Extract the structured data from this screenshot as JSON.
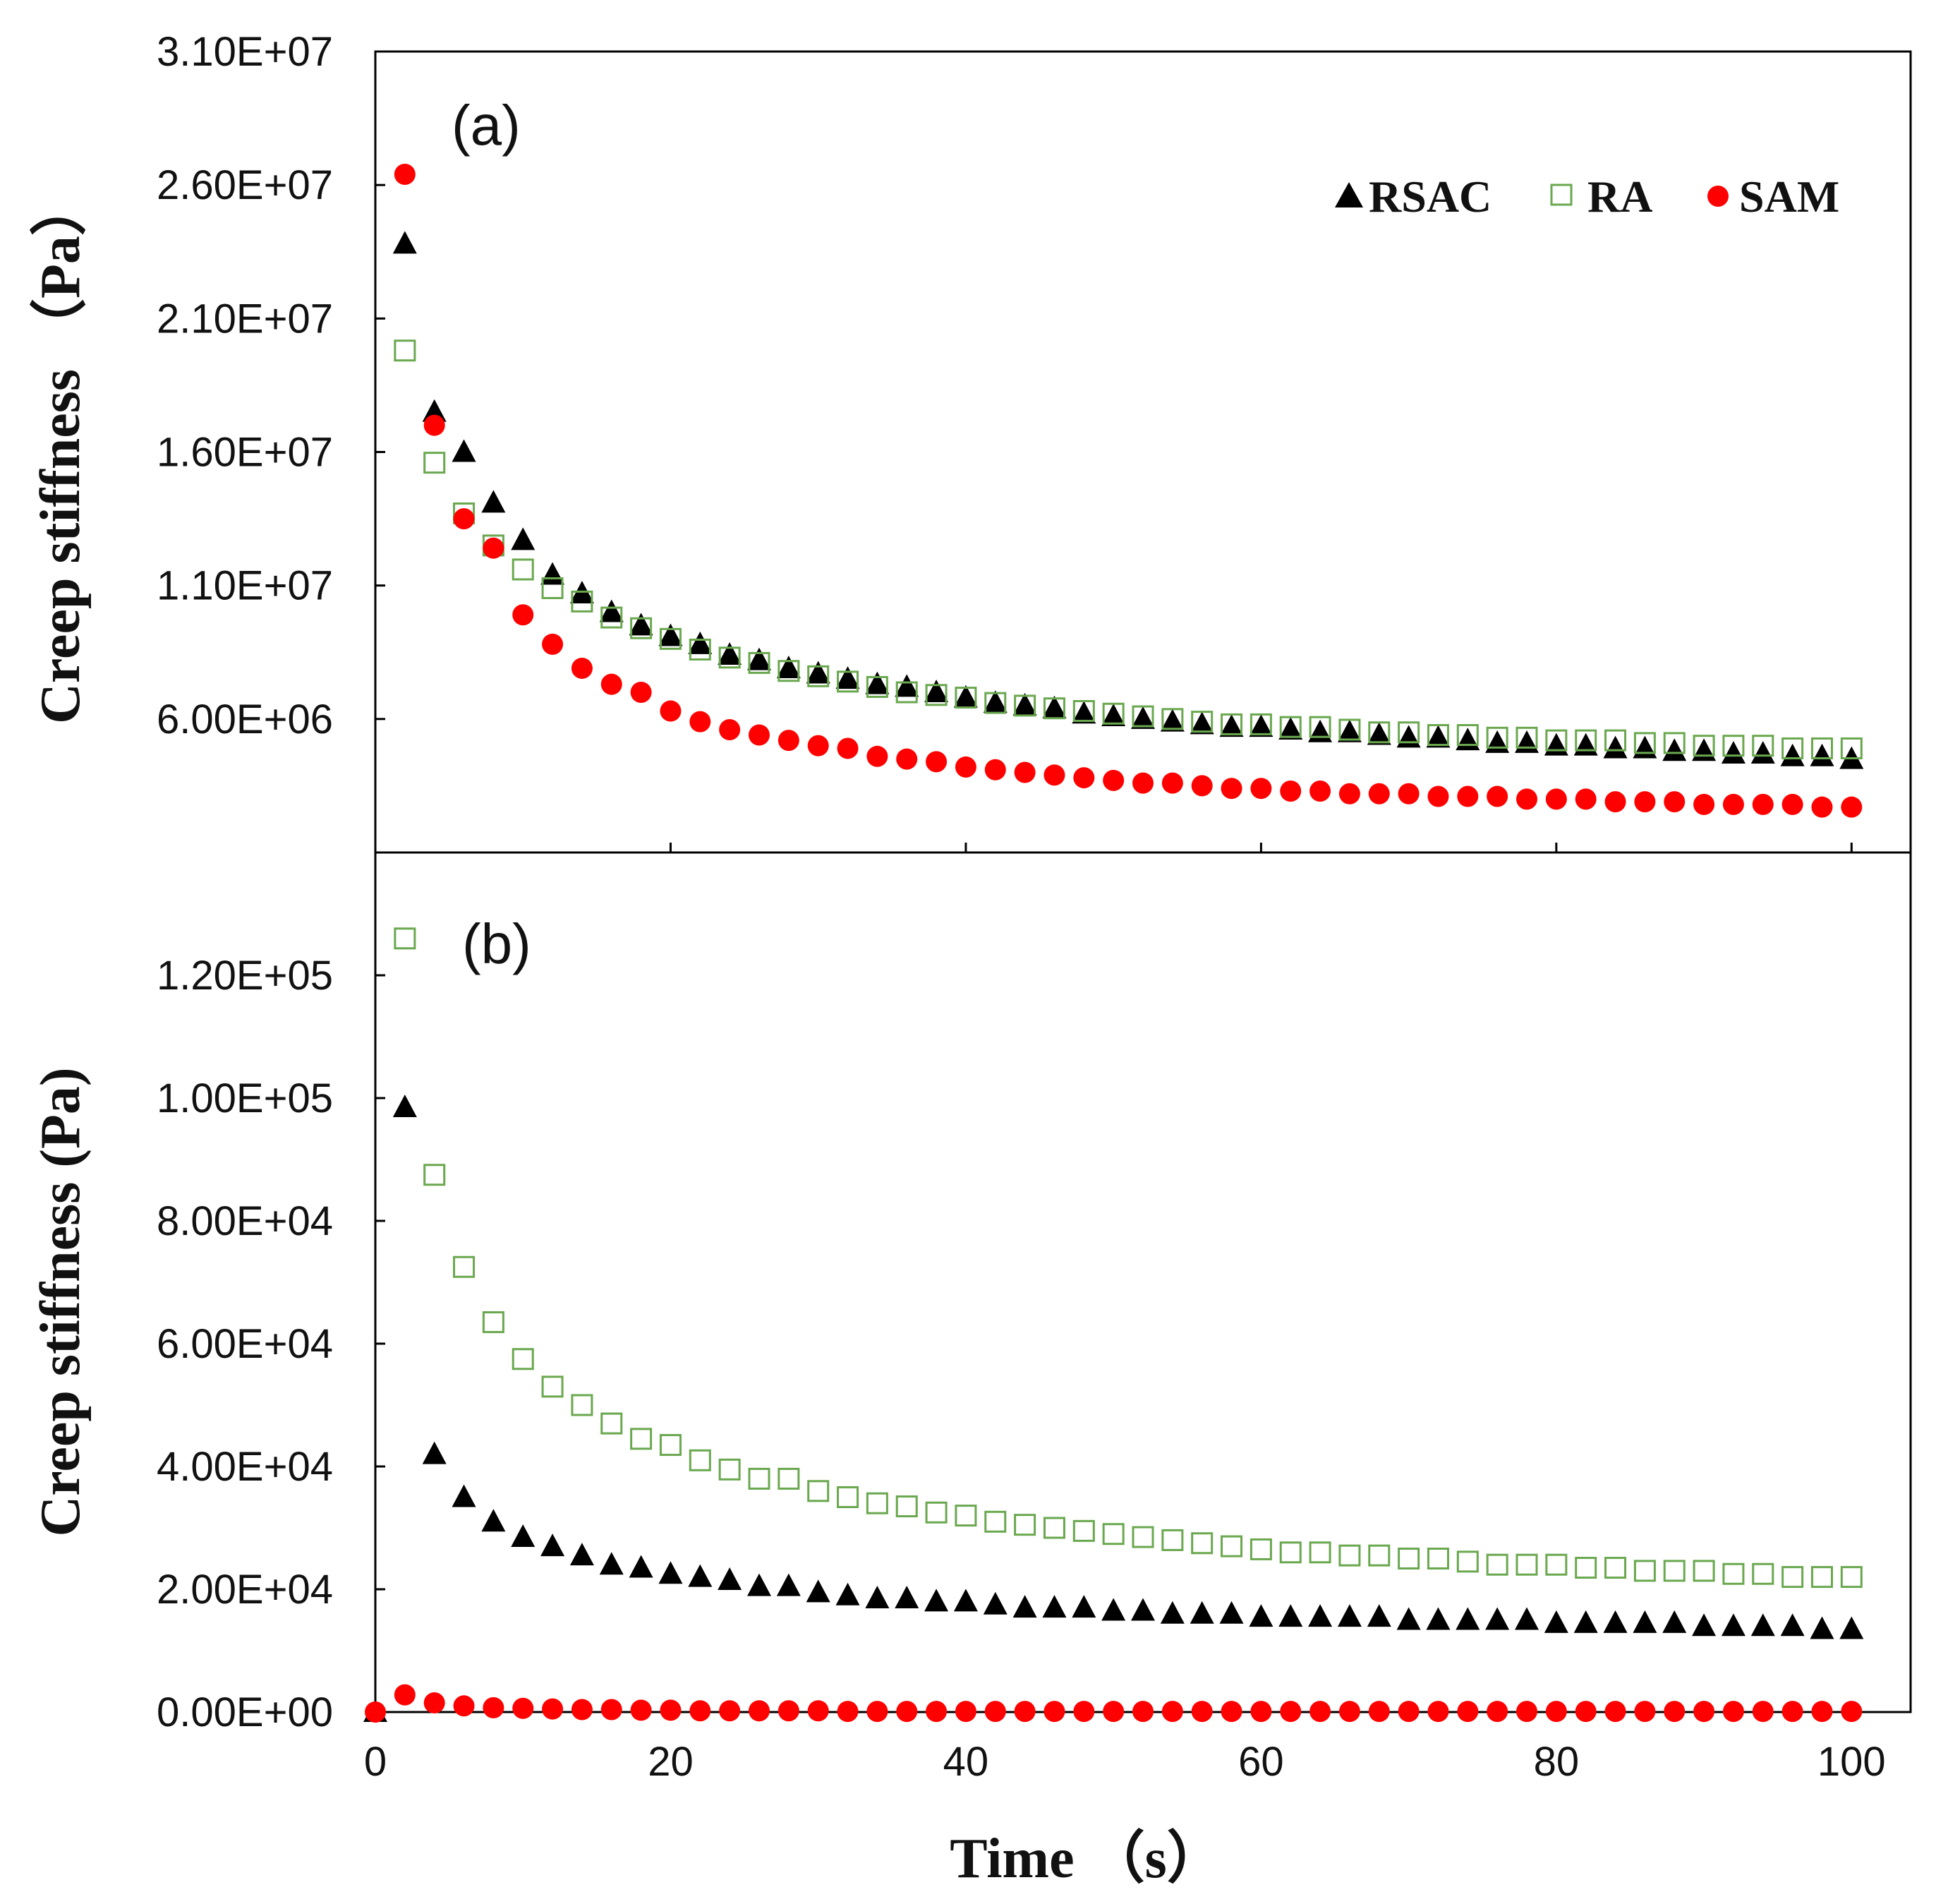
{
  "chart_data": [
    {
      "panel": "(a)",
      "type": "scatter",
      "ylabel": "Creep stiffness （Pa）",
      "xlim": [
        0,
        104
      ],
      "ylim": [
        1000000,
        31000000
      ],
      "yticks": [
        6000000,
        11000000,
        16000000,
        21000000,
        26000000,
        31000000
      ],
      "ytick_labels": [
        "6.00E+06",
        "1.10E+07",
        "1.60E+07",
        "2.10E+07",
        "2.60E+07",
        "3.10E+07"
      ],
      "xticks": [
        0,
        20,
        40,
        60,
        80,
        100
      ],
      "legend": {
        "position": "top-right",
        "entries": [
          "RSAC",
          "RA",
          "SAM"
        ]
      },
      "series": [
        {
          "name": "RSAC",
          "marker": "filled-triangle",
          "color": "#000000",
          "x": [
            2,
            4,
            6,
            8,
            10,
            12,
            14,
            16,
            18,
            20,
            22,
            24,
            26,
            28,
            30,
            32,
            34,
            36,
            38,
            40,
            42,
            44,
            46,
            48,
            50,
            52,
            54,
            56,
            58,
            60,
            62,
            64,
            66,
            68,
            70,
            72,
            74,
            76,
            78,
            80,
            82,
            84,
            86,
            88,
            90,
            92,
            94,
            96,
            98,
            100
          ],
          "values": [
            23800000,
            17500000,
            16000000,
            14100000,
            12700000,
            11400000,
            10700000,
            10000000,
            9500000,
            9100000,
            8800000,
            8400000,
            8200000,
            7900000,
            7700000,
            7500000,
            7300000,
            7200000,
            7000000,
            6800000,
            6600000,
            6500000,
            6400000,
            6200000,
            6100000,
            6000000,
            5900000,
            5800000,
            5700000,
            5700000,
            5600000,
            5500000,
            5500000,
            5400000,
            5300000,
            5300000,
            5200000,
            5100000,
            5100000,
            5000000,
            5000000,
            4900000,
            4900000,
            4800000,
            4800000,
            4700000,
            4700000,
            4600000,
            4600000,
            4500000
          ]
        },
        {
          "name": "RA",
          "marker": "open-square",
          "color": "#6aa84f",
          "x": [
            2,
            4,
            6,
            8,
            10,
            12,
            14,
            16,
            18,
            20,
            22,
            24,
            26,
            28,
            30,
            32,
            34,
            36,
            38,
            40,
            42,
            44,
            46,
            48,
            50,
            52,
            54,
            56,
            58,
            60,
            62,
            64,
            66,
            68,
            70,
            72,
            74,
            76,
            78,
            80,
            82,
            84,
            86,
            88,
            90,
            92,
            94,
            96,
            98,
            100
          ],
          "values": [
            19800000,
            15600000,
            13700000,
            12500000,
            11600000,
            10900000,
            10400000,
            9800000,
            9400000,
            9000000,
            8600000,
            8300000,
            8100000,
            7800000,
            7600000,
            7400000,
            7200000,
            7000000,
            6900000,
            6800000,
            6600000,
            6500000,
            6400000,
            6300000,
            6200000,
            6100000,
            6000000,
            5900000,
            5800000,
            5800000,
            5700000,
            5700000,
            5600000,
            5500000,
            5500000,
            5400000,
            5400000,
            5300000,
            5300000,
            5200000,
            5200000,
            5200000,
            5100000,
            5100000,
            5000000,
            5000000,
            5000000,
            4900000,
            4900000,
            4900000
          ]
        },
        {
          "name": "SAM",
          "marker": "filled-circle",
          "color": "#ff0000",
          "x": [
            2,
            4,
            6,
            8,
            10,
            12,
            14,
            16,
            18,
            20,
            22,
            24,
            26,
            28,
            30,
            32,
            34,
            36,
            38,
            40,
            42,
            44,
            46,
            48,
            50,
            52,
            54,
            56,
            58,
            60,
            62,
            64,
            66,
            68,
            70,
            72,
            74,
            76,
            78,
            80,
            82,
            84,
            86,
            88,
            90,
            92,
            94,
            96,
            98,
            100
          ],
          "values": [
            26400000,
            17000000,
            13500000,
            12400000,
            9900000,
            8800000,
            7900000,
            7300000,
            7000000,
            6300000,
            5900000,
            5600000,
            5400000,
            5200000,
            5000000,
            4900000,
            4600000,
            4500000,
            4400000,
            4200000,
            4100000,
            4000000,
            3900000,
            3800000,
            3700000,
            3600000,
            3600000,
            3500000,
            3400000,
            3400000,
            3300000,
            3300000,
            3200000,
            3200000,
            3200000,
            3100000,
            3100000,
            3100000,
            3000000,
            3000000,
            3000000,
            2900000,
            2900000,
            2900000,
            2800000,
            2800000,
            2800000,
            2800000,
            2700000,
            2700000
          ]
        }
      ]
    },
    {
      "panel": "(b)",
      "type": "scatter",
      "ylabel": "Creep stiffness (Pa)",
      "xlabel": "Time （s）",
      "xlim": [
        0,
        104
      ],
      "ylim": [
        0,
        140000
      ],
      "yticks": [
        0,
        20000,
        40000,
        60000,
        80000,
        100000,
        120000
      ],
      "ytick_labels": [
        "0.00E+00",
        "2.00E+04",
        "4.00E+04",
        "6.00E+04",
        "8.00E+04",
        "1.00E+05",
        "1.20E+05"
      ],
      "xticks": [
        0,
        20,
        40,
        60,
        80,
        100
      ],
      "xtick_labels": [
        "0",
        "20",
        "40",
        "60",
        "80",
        "100"
      ],
      "series": [
        {
          "name": "RSAC",
          "marker": "filled-triangle",
          "color": "#000000",
          "x": [
            0,
            2,
            4,
            6,
            8,
            10,
            12,
            14,
            16,
            18,
            20,
            22,
            24,
            26,
            28,
            30,
            32,
            34,
            36,
            38,
            40,
            42,
            44,
            46,
            48,
            50,
            52,
            54,
            56,
            58,
            60,
            62,
            64,
            66,
            68,
            70,
            72,
            74,
            76,
            78,
            80,
            82,
            84,
            86,
            88,
            90,
            92,
            94,
            96,
            98,
            100
          ],
          "values": [
            0,
            98500,
            42000,
            35000,
            31000,
            28500,
            27000,
            25500,
            24000,
            23500,
            22500,
            22000,
            21500,
            20500,
            20500,
            19500,
            19000,
            18500,
            18500,
            18000,
            18000,
            17500,
            17000,
            17000,
            17000,
            16500,
            16500,
            16000,
            16000,
            16000,
            15500,
            15500,
            15500,
            15500,
            15500,
            15000,
            15000,
            15000,
            15000,
            15000,
            14500,
            14500,
            14500,
            14500,
            14500,
            14000,
            14000,
            14000,
            14000,
            13500,
            13500
          ]
        },
        {
          "name": "RA",
          "marker": "open-square",
          "color": "#6aa84f",
          "x": [
            2,
            4,
            6,
            8,
            10,
            12,
            14,
            16,
            18,
            20,
            22,
            24,
            26,
            28,
            30,
            32,
            34,
            36,
            38,
            40,
            42,
            44,
            46,
            48,
            50,
            52,
            54,
            56,
            58,
            60,
            62,
            64,
            66,
            68,
            70,
            72,
            74,
            76,
            78,
            80,
            82,
            84,
            86,
            88,
            90,
            92,
            94,
            96,
            98,
            100
          ],
          "values": [
            126000,
            87500,
            72500,
            63500,
            57500,
            53000,
            50000,
            47000,
            44500,
            43500,
            41000,
            39500,
            38000,
            38000,
            36000,
            35000,
            34000,
            33500,
            32500,
            32000,
            31000,
            30500,
            30000,
            29500,
            29000,
            28500,
            28000,
            27500,
            27000,
            26500,
            26000,
            26000,
            25500,
            25500,
            25000,
            25000,
            24500,
            24000,
            24000,
            24000,
            23500,
            23500,
            23000,
            23000,
            23000,
            22500,
            22500,
            22000,
            22000,
            22000
          ]
        },
        {
          "name": "SAM",
          "marker": "filled-circle",
          "color": "#ff0000",
          "x": [
            0,
            2,
            4,
            6,
            8,
            10,
            12,
            14,
            16,
            18,
            20,
            22,
            24,
            26,
            28,
            30,
            32,
            34,
            36,
            38,
            40,
            42,
            44,
            46,
            48,
            50,
            52,
            54,
            56,
            58,
            60,
            62,
            64,
            66,
            68,
            70,
            72,
            74,
            76,
            78,
            80,
            82,
            84,
            86,
            88,
            90,
            92,
            94,
            96,
            98,
            100
          ],
          "values": [
            0,
            2800,
            1500,
            1000,
            700,
            600,
            500,
            400,
            400,
            300,
            300,
            200,
            200,
            200,
            200,
            200,
            100,
            100,
            100,
            100,
            100,
            100,
            100,
            100,
            100,
            100,
            100,
            100,
            100,
            100,
            100,
            100,
            100,
            100,
            100,
            100,
            100,
            100,
            100,
            100,
            100,
            100,
            100,
            100,
            100,
            100,
            100,
            100,
            100,
            100,
            100
          ]
        }
      ]
    }
  ]
}
